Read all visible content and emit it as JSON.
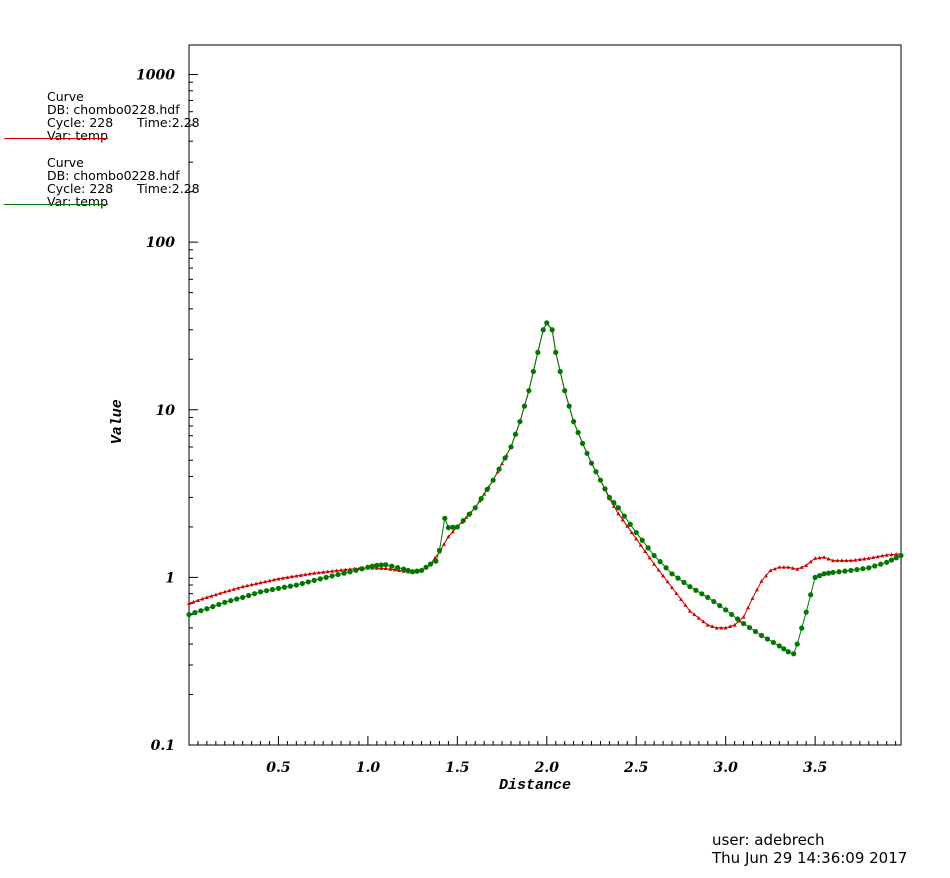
{
  "legend": [
    {
      "title": "Curve",
      "db": "DB: chombo0228.hdf",
      "cycle": "Cycle: 228",
      "time": "Time:2.28",
      "var": "Var: temp",
      "color": "#cc0000"
    },
    {
      "title": "Curve",
      "db": "DB: chombo0228.hdf",
      "cycle": "Cycle: 228",
      "time": "Time:2.28",
      "var": "Var: temp",
      "color": "#007700"
    }
  ],
  "footer": {
    "user": "user: adebrech",
    "date": "Thu Jun 29 14:36:09 2017"
  },
  "chart_data": {
    "type": "line",
    "xlabel": "Distance",
    "ylabel": "Value",
    "xlim": [
      0.0,
      3.98
    ],
    "ylim": [
      0.1,
      1500
    ],
    "yscale": "log",
    "x_ticks": [
      "0.5",
      "1.0",
      "1.5",
      "2.0",
      "2.5",
      "3.0",
      "3.5"
    ],
    "y_ticks": [
      "0.1",
      "1",
      "10",
      "100",
      "1000"
    ],
    "series": [
      {
        "color": "#cc0000",
        "marker": "triangle",
        "x": [
          0.0,
          0.1,
          0.2,
          0.3,
          0.4,
          0.5,
          0.6,
          0.7,
          0.8,
          0.9,
          1.0,
          1.1,
          1.2,
          1.25,
          1.3,
          1.35,
          1.4,
          1.45,
          1.5,
          1.6,
          1.7,
          1.8,
          1.85,
          1.9,
          1.95,
          1.98,
          2.0,
          2.03,
          2.05,
          2.1,
          2.15,
          2.2,
          2.25,
          2.3,
          2.35,
          2.4,
          2.5,
          2.6,
          2.7,
          2.8,
          2.9,
          2.95,
          3.0,
          3.05,
          3.1,
          3.15,
          3.2,
          3.25,
          3.3,
          3.35,
          3.4,
          3.45,
          3.5,
          3.55,
          3.6,
          3.7,
          3.8,
          3.9,
          3.98
        ],
        "y": [
          0.7,
          0.76,
          0.82,
          0.88,
          0.93,
          0.98,
          1.02,
          1.06,
          1.09,
          1.12,
          1.14,
          1.13,
          1.09,
          1.07,
          1.1,
          1.2,
          1.42,
          1.75,
          2.0,
          2.6,
          3.8,
          6.0,
          8.5,
          13.0,
          22.0,
          30.0,
          33.0,
          30.0,
          22.0,
          13.0,
          8.5,
          6.3,
          4.8,
          3.8,
          2.95,
          2.4,
          1.7,
          1.2,
          0.87,
          0.63,
          0.52,
          0.5,
          0.5,
          0.52,
          0.58,
          0.75,
          0.95,
          1.1,
          1.15,
          1.15,
          1.12,
          1.18,
          1.3,
          1.32,
          1.26,
          1.26,
          1.3,
          1.36,
          1.38
        ]
      },
      {
        "color": "#007700",
        "marker": "circle",
        "x": [
          0.0,
          0.1,
          0.2,
          0.3,
          0.4,
          0.5,
          0.6,
          0.7,
          0.8,
          0.9,
          1.0,
          1.05,
          1.1,
          1.2,
          1.25,
          1.3,
          1.35,
          1.38,
          1.4,
          1.43,
          1.45,
          1.5,
          1.6,
          1.7,
          1.8,
          1.85,
          1.9,
          1.95,
          1.98,
          2.0,
          2.03,
          2.05,
          2.1,
          2.15,
          2.2,
          2.25,
          2.3,
          2.35,
          2.4,
          2.5,
          2.6,
          2.7,
          2.8,
          2.9,
          3.0,
          3.1,
          3.2,
          3.3,
          3.35,
          3.38,
          3.4,
          3.45,
          3.5,
          3.55,
          3.6,
          3.7,
          3.8,
          3.9,
          3.98
        ],
        "y": [
          0.6,
          0.65,
          0.71,
          0.76,
          0.82,
          0.86,
          0.9,
          0.96,
          1.02,
          1.08,
          1.15,
          1.18,
          1.19,
          1.12,
          1.08,
          1.1,
          1.2,
          1.25,
          1.45,
          2.25,
          1.98,
          2.0,
          2.6,
          3.8,
          6.0,
          8.5,
          13.0,
          22.0,
          30.0,
          33.0,
          30.0,
          22.0,
          13.0,
          8.5,
          6.3,
          4.8,
          3.8,
          3.0,
          2.6,
          1.85,
          1.35,
          1.05,
          0.88,
          0.76,
          0.64,
          0.53,
          0.45,
          0.39,
          0.36,
          0.35,
          0.4,
          0.62,
          1.0,
          1.05,
          1.07,
          1.1,
          1.14,
          1.23,
          1.35
        ]
      }
    ]
  }
}
